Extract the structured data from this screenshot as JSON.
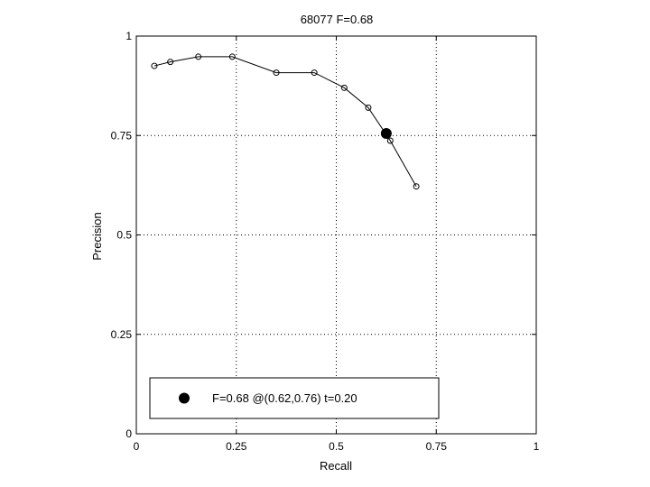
{
  "chart_data": {
    "type": "line",
    "title": "68077 F=0.68",
    "xlabel": "Recall",
    "ylabel": "Precision",
    "xlim": [
      0,
      1
    ],
    "ylim": [
      0,
      1
    ],
    "xticks": [
      0,
      0.25,
      0.5,
      0.75,
      1
    ],
    "yticks": [
      0,
      0.25,
      0.5,
      0.75,
      1
    ],
    "xtick_labels": [
      "0",
      "0.25",
      "0.5",
      "0.75",
      "1"
    ],
    "ytick_labels": [
      "0",
      "0.25",
      "0.5",
      "0.75",
      "1"
    ],
    "grid": "dotted",
    "series": [
      {
        "x": [
          0.045,
          0.085,
          0.155,
          0.24,
          0.35,
          0.445,
          0.52,
          0.58,
          0.635,
          0.7
        ],
        "y": [
          0.925,
          0.935,
          0.948,
          0.948,
          0.908,
          0.908,
          0.87,
          0.82,
          0.737,
          0.622
        ],
        "marker": "open-circle",
        "color": "#000000"
      }
    ],
    "best_point": {
      "x": 0.625,
      "y": 0.755,
      "marker": "filled-circle",
      "color": "#000000"
    },
    "legend": {
      "position": "bottom-left",
      "entries": [
        {
          "label": "F=0.68 @(0.62,0.76) t=0.20",
          "marker": "filled-circle"
        }
      ]
    }
  }
}
